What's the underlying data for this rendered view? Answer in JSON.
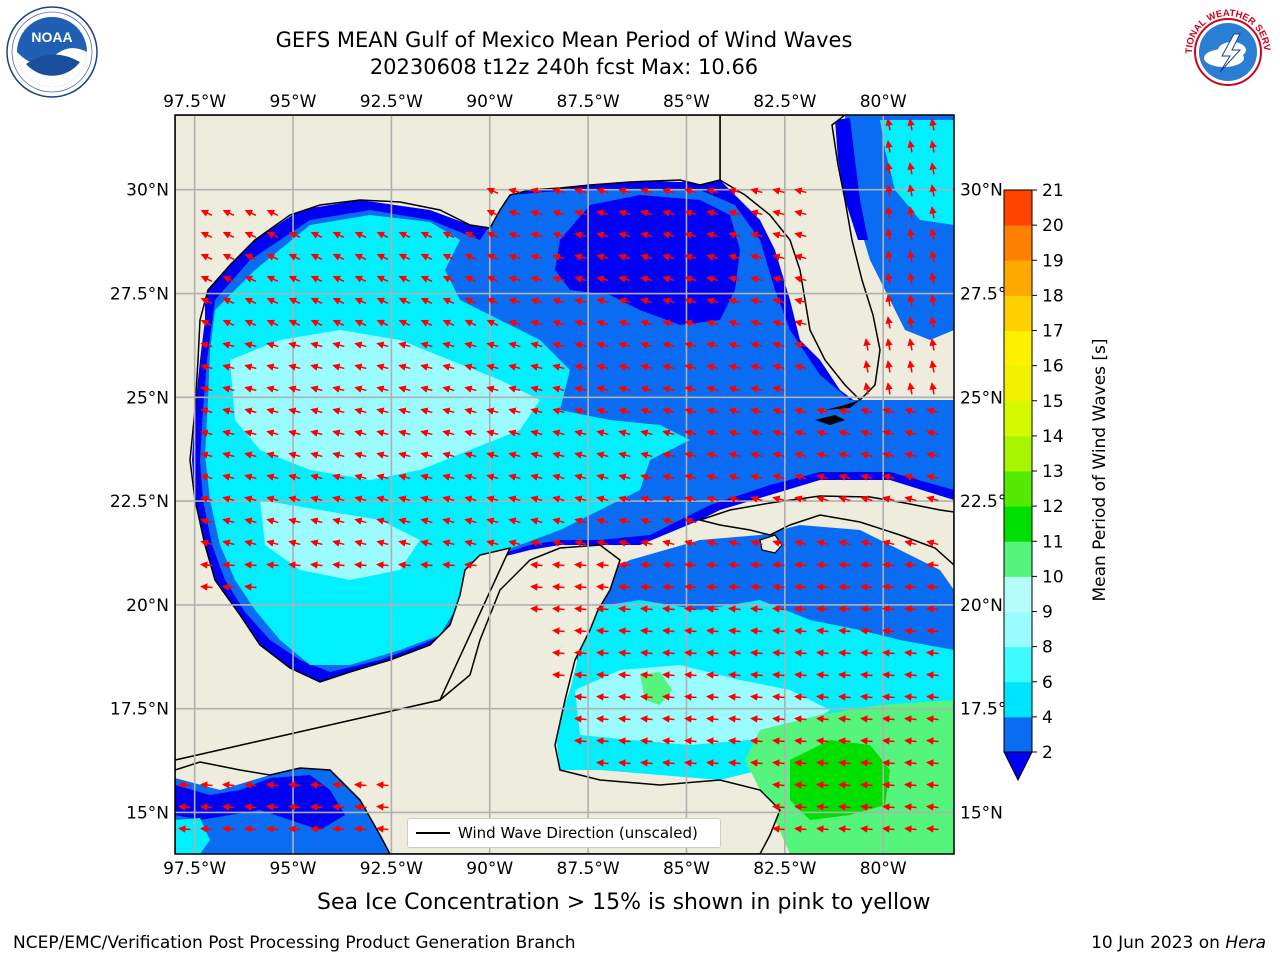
{
  "title": {
    "line1": "GEFS MEAN Gulf of Mexico Mean Period of Wind Waves",
    "line2": "20230608 t12z 240h fcst   Max: 10.66"
  },
  "logos": {
    "left": {
      "icon": "noaa-logo",
      "text": "NOAA"
    },
    "right": {
      "icon": "national-weather-service-logo",
      "text": "NATIONAL WEATHER SERVICE"
    }
  },
  "axes": {
    "lon_ticks": [
      "97.5°W",
      "95°W",
      "92.5°W",
      "90°W",
      "87.5°W",
      "85°W",
      "82.5°W",
      "80°W"
    ],
    "lat_ticks": [
      "30°N",
      "27.5°N",
      "25°N",
      "22.5°N",
      "20°N",
      "17.5°N",
      "15°N"
    ],
    "lon_range": [
      -98,
      -78.2
    ],
    "lat_range": [
      14,
      31.8
    ]
  },
  "legend": {
    "label": "Wind Wave Direction (unscaled)"
  },
  "colorbar": {
    "label": "Mean Period of Wind Waves [s]",
    "ticks": [
      "2",
      "4",
      "6",
      "8",
      "9",
      "10",
      "11",
      "12",
      "13",
      "14",
      "15",
      "16",
      "17",
      "18",
      "19",
      "20",
      "21"
    ],
    "colors": [
      "#0a6cf2",
      "#00e5ff",
      "#3dfbff",
      "#9afcff",
      "#b4fdfa",
      "#55f47d",
      "#00e000",
      "#54eb00",
      "#a8f500",
      "#d4fa00",
      "#f0f000",
      "#fff000",
      "#ffd000",
      "#ffa800",
      "#ff8000",
      "#ff4400",
      "#ff1400",
      "#ff0000"
    ]
  },
  "colors": {
    "land": "#eeecdc",
    "dark_blue": "#0000f5",
    "blue": "#0a6cf2",
    "cyan": "#00f0ff",
    "light_cyan": "#9afcff",
    "green": "#55f47d",
    "bright_green": "#00e000",
    "arrow": "#ff0000",
    "grid": "#b0b0b0"
  },
  "caption": "Sea Ice Concentration > 15% is shown in pink to yellow",
  "footer": {
    "left": "NCEP/EMC/Verification Post Processing Product Generation Branch",
    "right_date": "10 Jun 2023 on ",
    "right_host": "Hera"
  }
}
